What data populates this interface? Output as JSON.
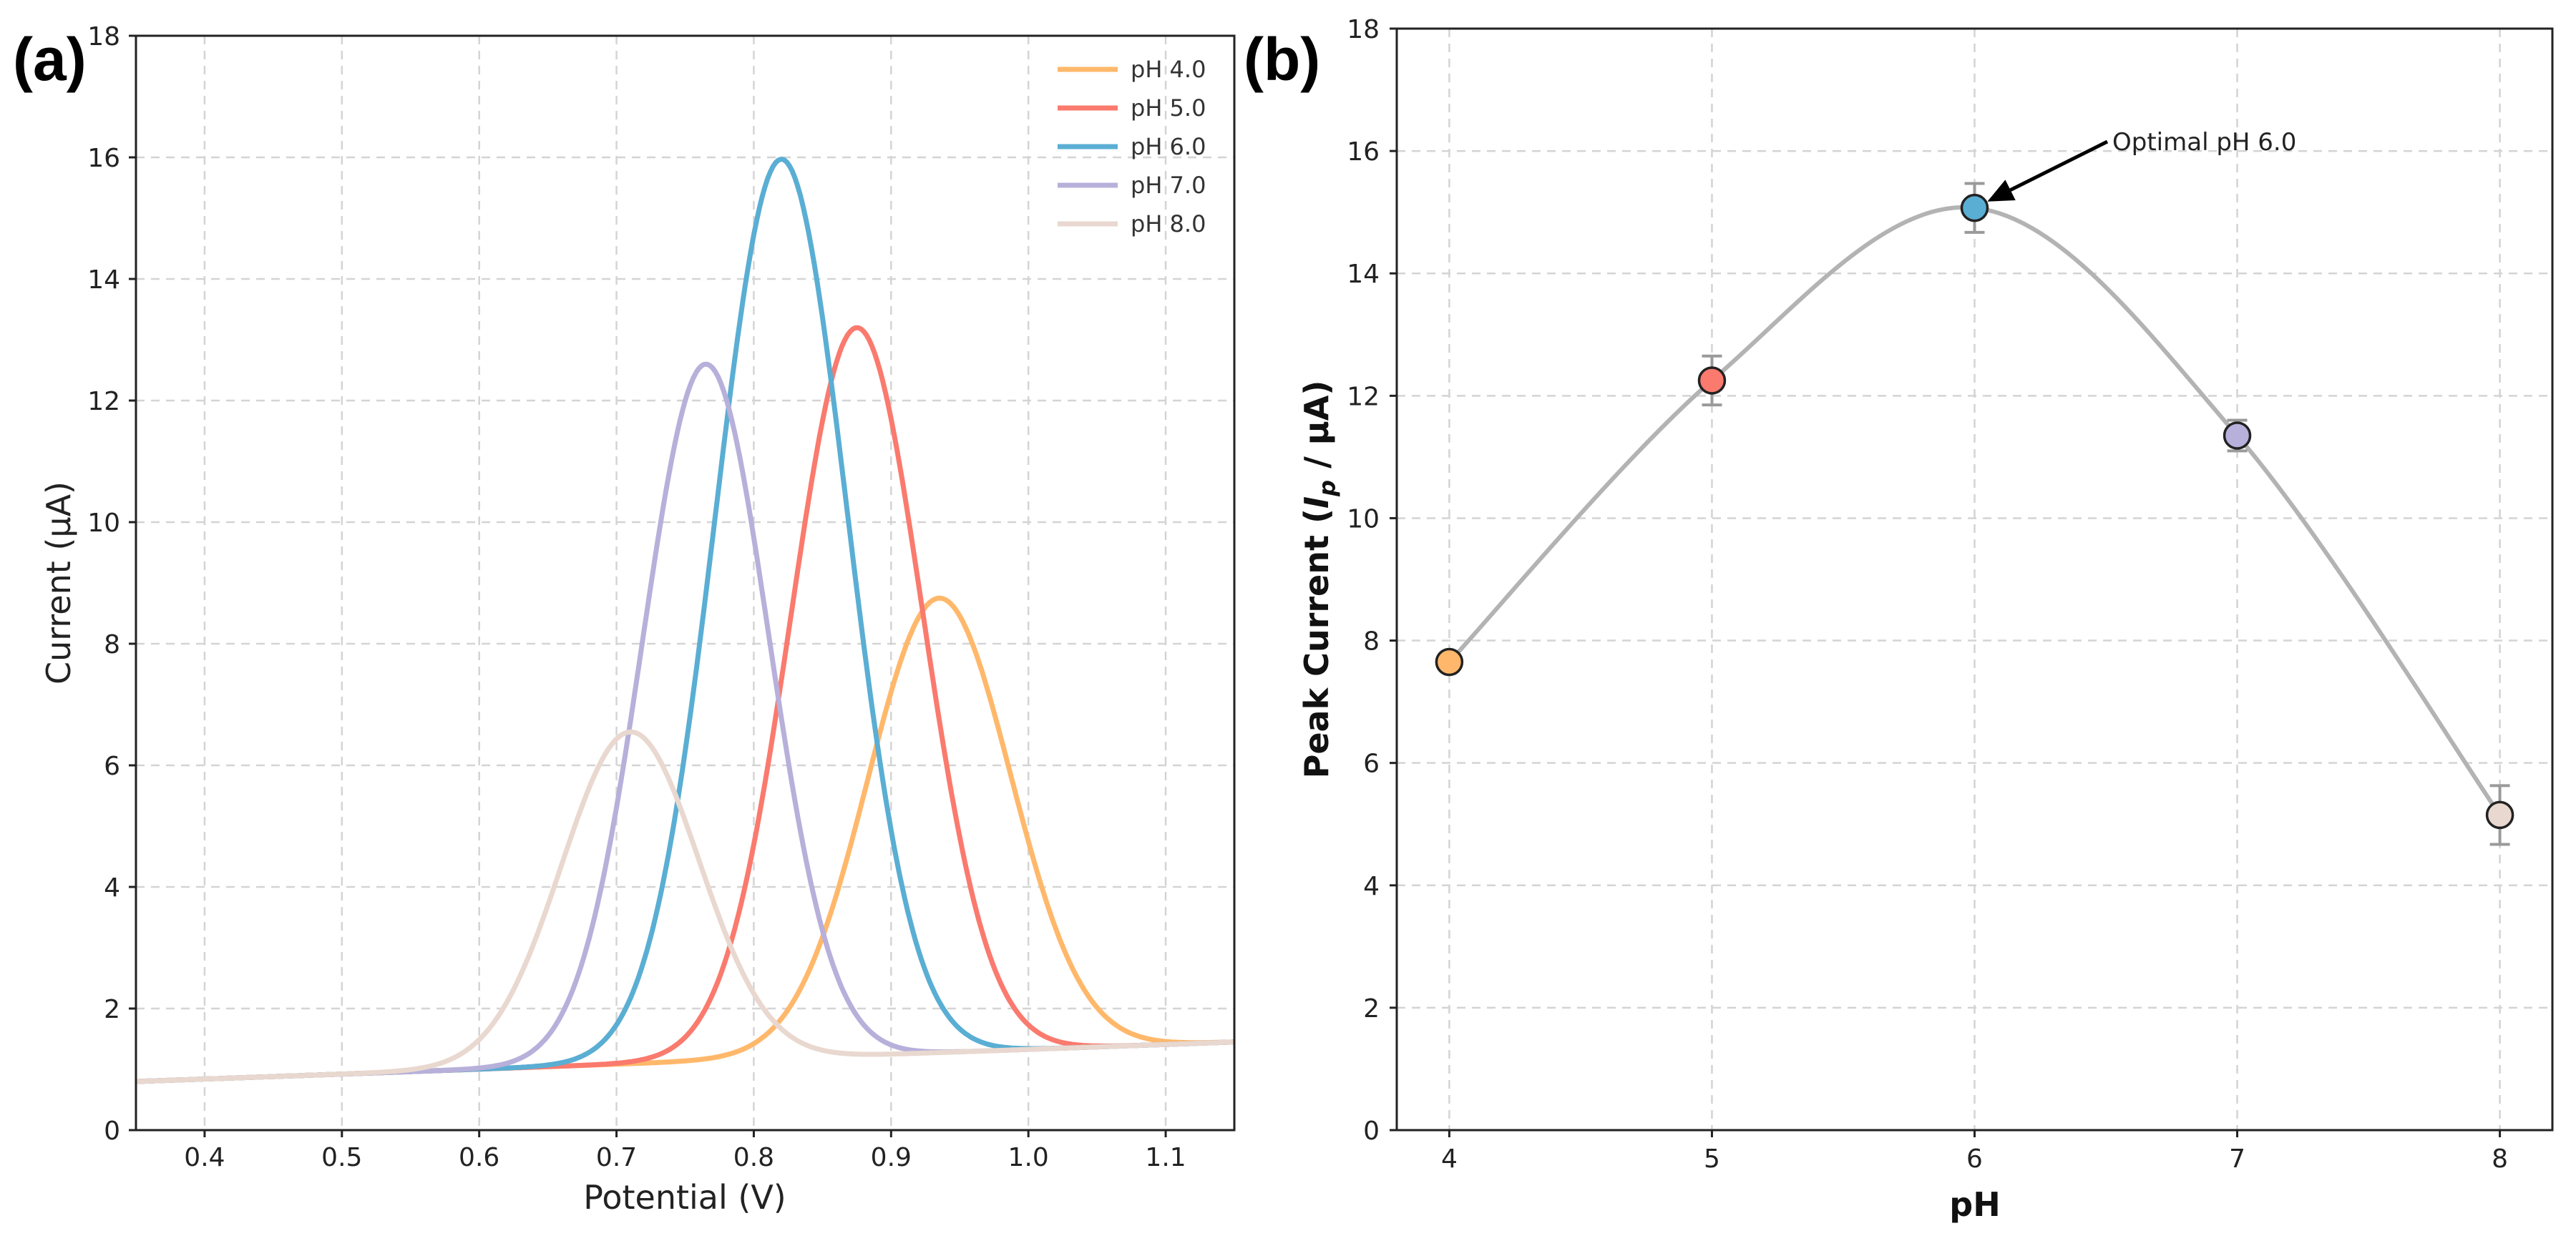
{
  "chart_data": [
    {
      "panel_label": "(a)",
      "type": "line",
      "xlabel": "Potential (V)",
      "ylabel": "Current (µA)",
      "xlim": [
        0.35,
        1.15
      ],
      "ylim": [
        0,
        18
      ],
      "xticks": [
        "0.4",
        "0.5",
        "0.6",
        "0.7",
        "0.8",
        "0.9",
        "1.0",
        "1.1"
      ],
      "yticks": [
        "0",
        "2",
        "4",
        "6",
        "8",
        "10",
        "12",
        "14",
        "16",
        "18"
      ],
      "grid": true,
      "legend_position": "top-right",
      "baseline": {
        "start": [
          0.35,
          0.8
        ],
        "end": [
          1.15,
          1.45
        ]
      },
      "series": [
        {
          "name": "pH 4.0",
          "color": "#ffb86b",
          "peak_potential": 0.935,
          "peak_current": 8.75,
          "width": 0.052
        },
        {
          "name": "pH 5.0",
          "color": "#fa7a6e",
          "peak_potential": 0.875,
          "peak_current": 13.2,
          "width": 0.048
        },
        {
          "name": "pH 6.0",
          "color": "#5aaed3",
          "peak_potential": 0.82,
          "peak_current": 15.97,
          "width": 0.048
        },
        {
          "name": "pH 7.0",
          "color": "#b7b0da",
          "peak_potential": 0.765,
          "peak_current": 12.6,
          "width": 0.046
        },
        {
          "name": "pH 8.0",
          "color": "#e9d8cf",
          "peak_potential": 0.71,
          "peak_current": 6.55,
          "width": 0.05
        }
      ]
    },
    {
      "panel_label": "(b)",
      "type": "scatter",
      "xlabel": "pH",
      "ylabel_prefix": "Peak Current (",
      "ylabel_italic": "I",
      "ylabel_sub": "p",
      "ylabel_suffix": " / µA)",
      "xlim": [
        3.8,
        8.2
      ],
      "ylim": [
        0,
        18
      ],
      "xticks": [
        "4",
        "5",
        "6",
        "7",
        "8"
      ],
      "yticks": [
        "0",
        "2",
        "4",
        "6",
        "8",
        "10",
        "12",
        "14",
        "16",
        "18"
      ],
      "grid": true,
      "fit_line_color": "#b3b3b3",
      "points": [
        {
          "x": 4,
          "y": 7.65,
          "err": 0.0,
          "color": "#ffb86b"
        },
        {
          "x": 5,
          "y": 12.25,
          "err": 0.4,
          "color": "#fa7a6e"
        },
        {
          "x": 6,
          "y": 15.07,
          "err": 0.4,
          "color": "#5aaed3"
        },
        {
          "x": 7,
          "y": 11.35,
          "err": 0.25,
          "color": "#b7b0da"
        },
        {
          "x": 8,
          "y": 5.15,
          "err": 0.48,
          "color": "#e9d8cf"
        }
      ],
      "annotation": {
        "text": "Optimal pH 6.0",
        "target_x": 6,
        "target_y": 15.07
      }
    }
  ]
}
